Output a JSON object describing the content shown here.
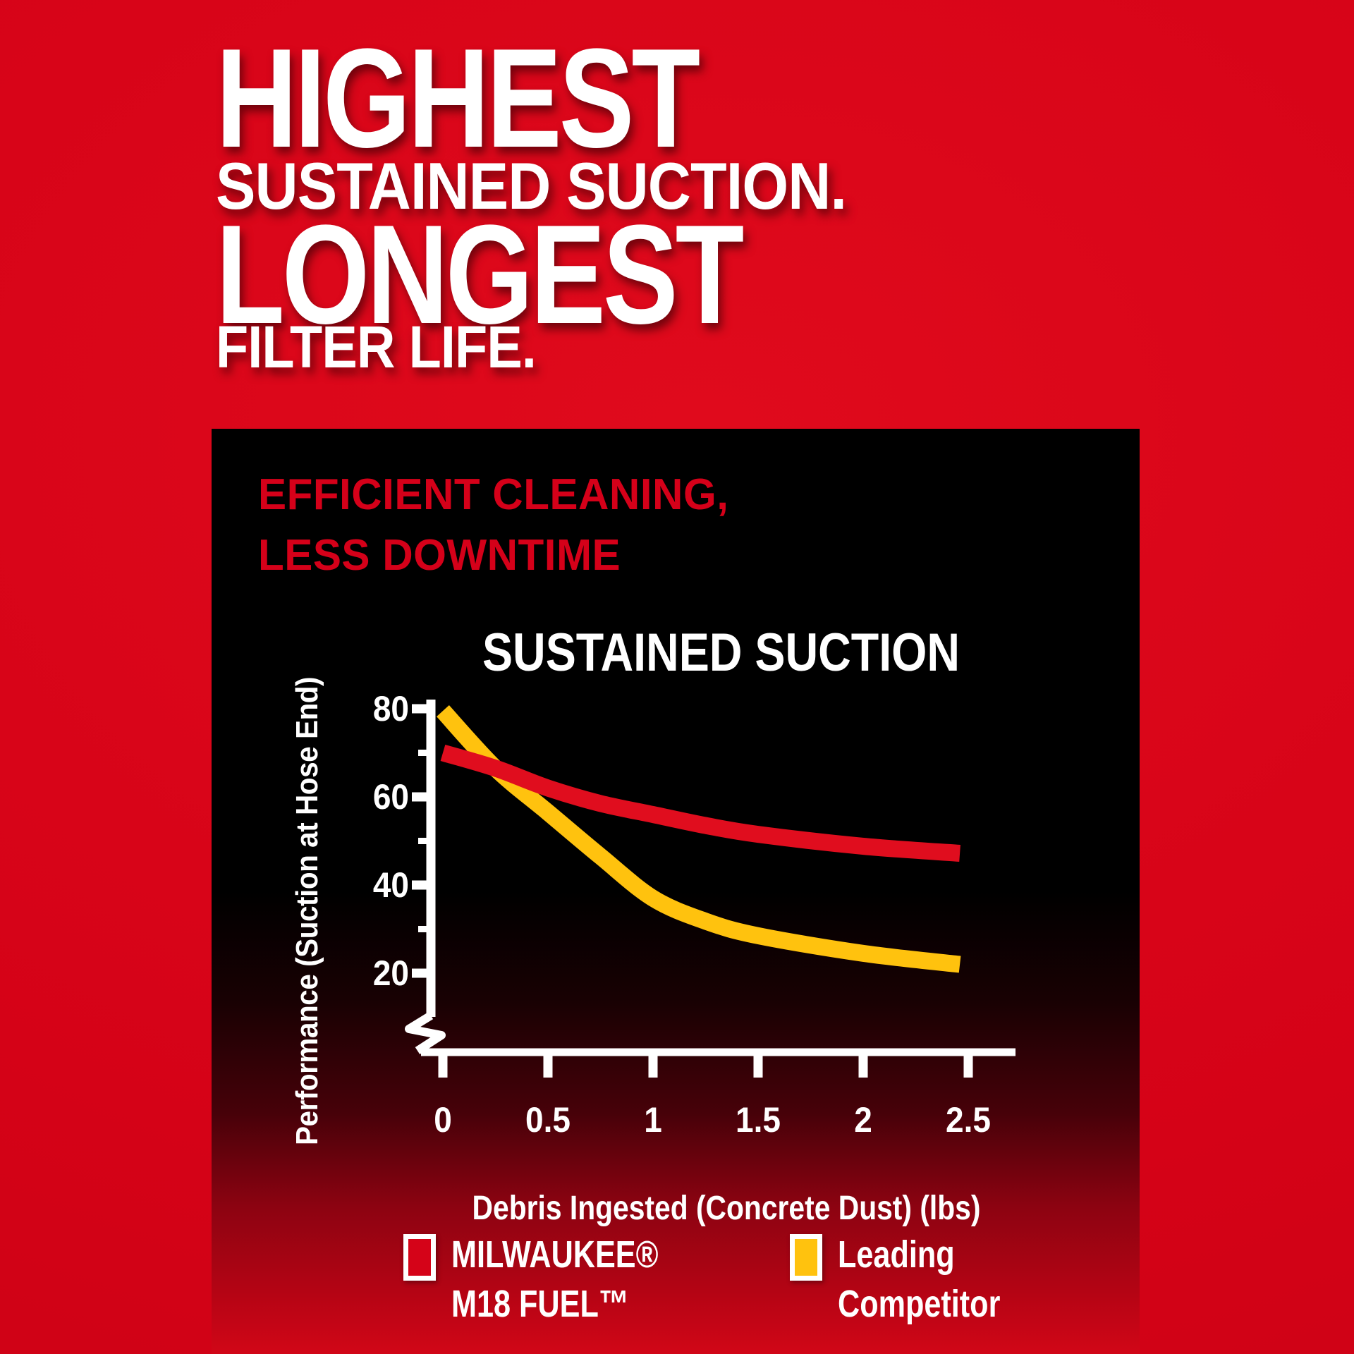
{
  "headline": {
    "line1": "HIGHEST",
    "line2": "SUSTAINED SUCTION.",
    "line3": "LONGEST",
    "line4": "FILTER LIFE."
  },
  "panel": {
    "heading_line1": "EFFICIENT CLEANING,",
    "heading_line2": "LESS DOWNTIME"
  },
  "chart_data": {
    "type": "line",
    "title": "SUSTAINED SUCTION",
    "xlabel": "Debris Ingested (Concrete Dust) (lbs)",
    "ylabel": "Performance (Suction at Hose End)",
    "x_ticks": [
      "0",
      "0.5",
      "1",
      "1.5",
      "2",
      "2.5"
    ],
    "x_tick_values": [
      0,
      0.5,
      1,
      1.5,
      2,
      2.5
    ],
    "y_ticks": [
      80,
      60,
      40,
      20
    ],
    "y_minor_ticks": [
      70,
      50,
      30
    ],
    "xlim": [
      0,
      2.5
    ],
    "ylim": [
      20,
      80
    ],
    "axis_break": true,
    "grid": false,
    "legend_position": "bottom",
    "series": [
      {
        "name": "MILWAUKEE® M18 FUEL™",
        "color": "#e00d1e",
        "points": [
          [
            0,
            70
          ],
          [
            0.25,
            66.5
          ],
          [
            0.5,
            62
          ],
          [
            0.75,
            58.5
          ],
          [
            1,
            56
          ],
          [
            1.25,
            53.5
          ],
          [
            1.5,
            51.5
          ],
          [
            2,
            48.8
          ],
          [
            2.46,
            47.2
          ]
        ]
      },
      {
        "name": "Leading Competitor",
        "color": "#ffc20e",
        "points": [
          [
            0,
            79.5
          ],
          [
            0.25,
            66.5
          ],
          [
            0.5,
            56.5
          ],
          [
            0.75,
            46.5
          ],
          [
            1,
            37
          ],
          [
            1.25,
            31.8
          ],
          [
            1.5,
            28.5
          ],
          [
            2,
            24.5
          ],
          [
            2.46,
            22
          ]
        ]
      }
    ]
  },
  "legend": {
    "items": [
      {
        "swatch_color": "#d50318",
        "line1": "MILWAUKEE®",
        "line2": "M18 FUEL™"
      },
      {
        "swatch_color": "#ffc20e",
        "line1": "Leading",
        "line2": "Competitor"
      }
    ]
  },
  "colors": {
    "background_red": "#d50217",
    "panel_black": "#000000",
    "accent_red": "#d50019",
    "competitor_yellow": "#ffc20e",
    "axis_white": "#ffffff"
  }
}
